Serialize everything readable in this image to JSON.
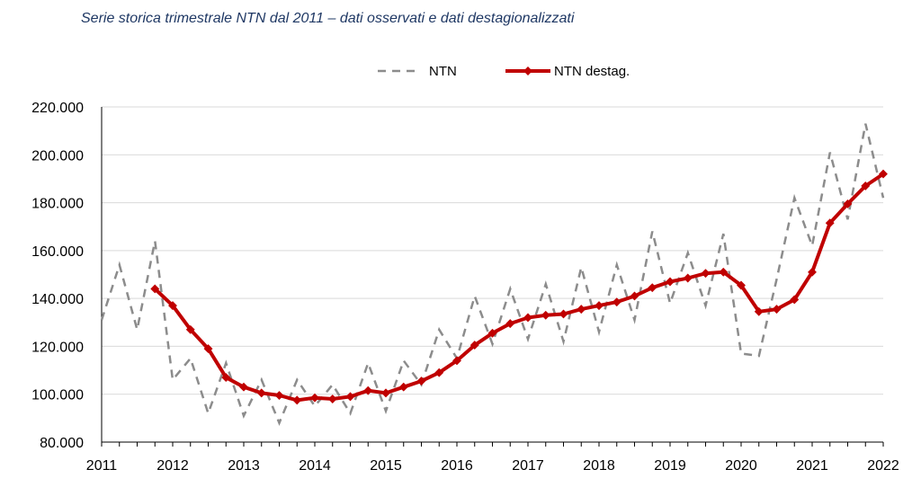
{
  "chart_data": {
    "type": "line",
    "title": "Serie storica trimestrale NTN dal 2011 – dati osservati e dati destagionalizzati",
    "xlabel": "",
    "ylabel": "",
    "ylim": [
      80000,
      220000
    ],
    "xlim": [
      2011,
      2022
    ],
    "y_ticks": [
      "80.000",
      "100.000",
      "120.000",
      "140.000",
      "160.000",
      "180.000",
      "200.000",
      "220.000"
    ],
    "x_ticks": [
      "2011",
      "2012",
      "2013",
      "2014",
      "2015",
      "2016",
      "2017",
      "2018",
      "2019",
      "2020",
      "2021",
      "2022"
    ],
    "grid": true,
    "legend_position": "top",
    "series": [
      {
        "name": "NTN",
        "style": "dashed",
        "color": "#8c8c8c",
        "x": [
          2011.0,
          2011.25,
          2011.5,
          2011.75,
          2012.0,
          2012.25,
          2012.5,
          2012.75,
          2013.0,
          2013.25,
          2013.5,
          2013.75,
          2014.0,
          2014.25,
          2014.5,
          2014.75,
          2015.0,
          2015.25,
          2015.5,
          2015.75,
          2016.0,
          2016.25,
          2016.5,
          2016.75,
          2017.0,
          2017.25,
          2017.5,
          2017.75,
          2018.0,
          2018.25,
          2018.5,
          2018.75,
          2019.0,
          2019.25,
          2019.5,
          2019.75,
          2020.0,
          2020.25,
          2020.5,
          2020.75,
          2021.0,
          2021.25,
          2021.5,
          2021.75,
          2022.0
        ],
        "values": [
          131000,
          154000,
          127000,
          164000,
          106000,
          115000,
          92000,
          113000,
          91000,
          106000,
          88000,
          106000,
          95000,
          104000,
          92000,
          113000,
          93000,
          114000,
          104000,
          127000,
          115000,
          141000,
          121000,
          144000,
          123000,
          146000,
          122000,
          153000,
          126000,
          154000,
          131000,
          168000,
          138000,
          159000,
          137000,
          167000,
          117000,
          116000,
          148000,
          182000,
          162000,
          201000,
          173000,
          213000,
          182000
        ]
      },
      {
        "name": "NTN destag.",
        "style": "solid-diamond",
        "color": "#c00000",
        "x": [
          2011.75,
          2012.0,
          2012.25,
          2012.5,
          2012.75,
          2013.0,
          2013.25,
          2013.5,
          2013.75,
          2014.0,
          2014.25,
          2014.5,
          2014.75,
          2015.0,
          2015.25,
          2015.5,
          2015.75,
          2016.0,
          2016.25,
          2016.5,
          2016.75,
          2017.0,
          2017.25,
          2017.5,
          2017.75,
          2018.0,
          2018.25,
          2018.5,
          2018.75,
          2019.0,
          2019.25,
          2019.5,
          2019.75,
          2020.0,
          2020.25,
          2020.5,
          2020.75,
          2021.0,
          2021.25,
          2021.5,
          2021.75,
          2022.0
        ],
        "values": [
          144000,
          137000,
          127000,
          119000,
          107000,
          103000,
          100500,
          99500,
          97500,
          98500,
          98000,
          99000,
          101500,
          100500,
          103000,
          105500,
          109000,
          114000,
          120500,
          125500,
          129500,
          132000,
          133000,
          133500,
          135500,
          137000,
          138500,
          141000,
          144500,
          147000,
          148500,
          150500,
          151000,
          145500,
          134500,
          135500,
          139500,
          151000,
          171500,
          179500,
          187000,
          192000
        ]
      }
    ]
  }
}
